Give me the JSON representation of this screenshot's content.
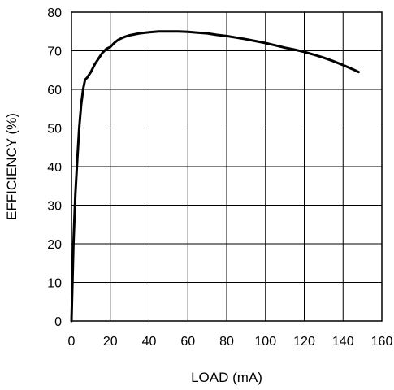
{
  "chart_data": {
    "type": "line",
    "title": "",
    "xlabel": "LOAD (mA)",
    "ylabel": "EFFICIENCY (%)",
    "xlim": [
      0,
      160
    ],
    "ylim": [
      0,
      80
    ],
    "x_ticks": [
      0,
      20,
      40,
      60,
      80,
      100,
      120,
      140,
      160
    ],
    "y_ticks": [
      0,
      10,
      20,
      30,
      40,
      50,
      60,
      70,
      80
    ],
    "grid": true,
    "legend": "none",
    "line_color": "#000000",
    "series": [
      {
        "x": [
          0,
          1,
          2,
          3,
          4,
          5,
          6,
          7,
          8,
          10,
          12,
          14,
          16,
          18,
          20,
          22,
          24,
          26,
          28,
          30,
          35,
          40,
          45,
          50,
          55,
          60,
          65,
          70,
          75,
          80,
          85,
          90,
          95,
          100,
          105,
          110,
          115,
          120,
          125,
          130,
          135,
          140,
          145,
          148
        ],
        "y": [
          0,
          20,
          33,
          42,
          50,
          56,
          60,
          62.5,
          63,
          64.5,
          66.5,
          68,
          69.5,
          70.5,
          71,
          72,
          72.8,
          73.3,
          73.7,
          74,
          74.5,
          74.8,
          75,
          75,
          75,
          74.9,
          74.7,
          74.5,
          74.1,
          73.8,
          73.4,
          73,
          72.5,
          72,
          71.4,
          70.8,
          70.3,
          69.7,
          69,
          68.2,
          67.3,
          66.3,
          65.2,
          64.5
        ]
      }
    ]
  }
}
